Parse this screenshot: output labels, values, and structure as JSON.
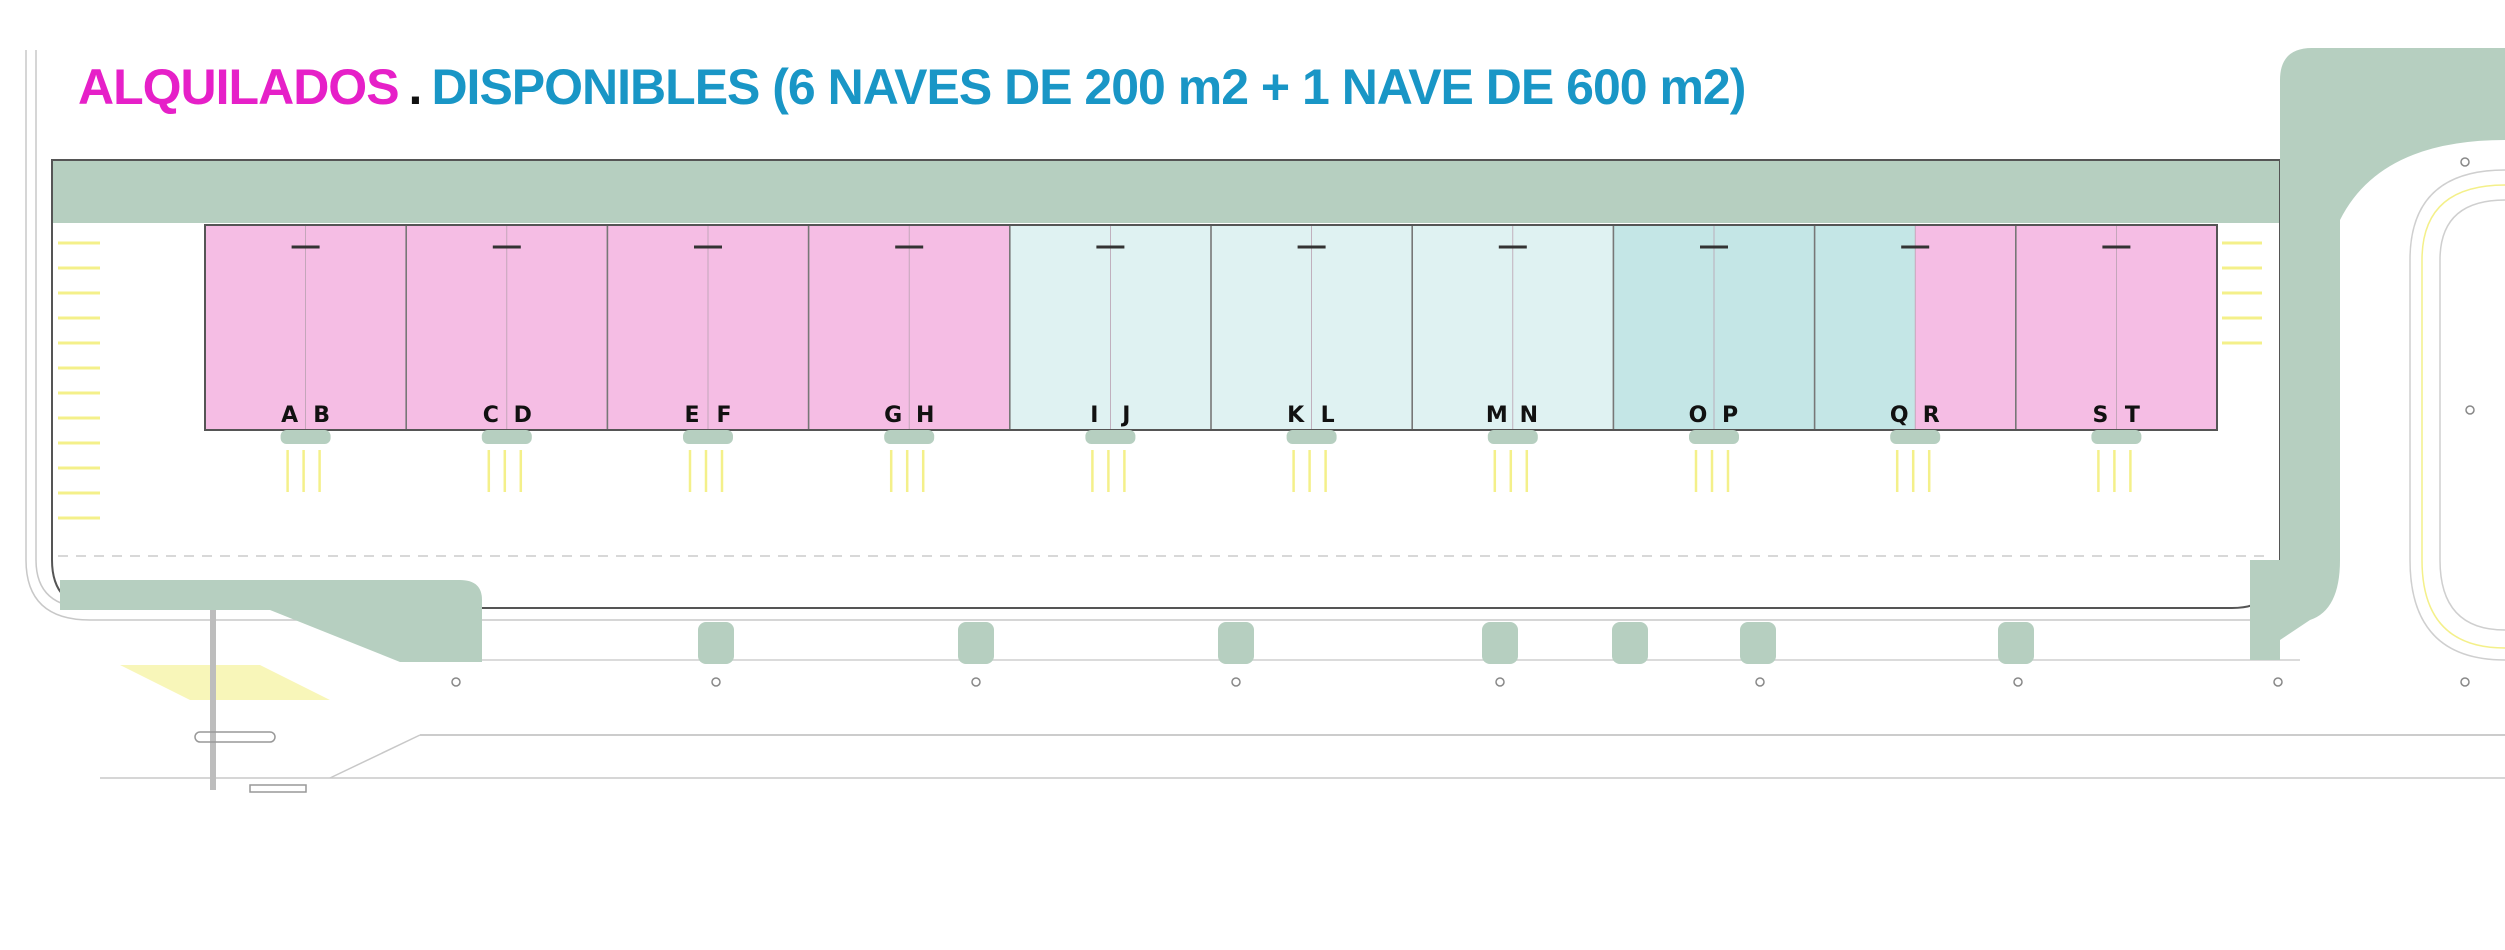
{
  "title": {
    "rented": "ALQUILADOS",
    "separator": ".",
    "available": "DISPONIBLES (6 NAVES DE 200 m2 + 1 NAVE DE 600 m2)"
  },
  "colors": {
    "rented": "#f5bde4",
    "available_light": "#dff2f2",
    "available_dark": "#c4e6e6",
    "rented_text": "#e620c8",
    "available_text": "#1996c6",
    "green_area": "#b6cfc0",
    "yellow_marking": "#f4f08a"
  },
  "units": [
    {
      "label": "A",
      "status": "rented"
    },
    {
      "label": "B",
      "status": "rented"
    },
    {
      "label": "C",
      "status": "rented"
    },
    {
      "label": "D",
      "status": "rented"
    },
    {
      "label": "E",
      "status": "rented"
    },
    {
      "label": "F",
      "status": "rented"
    },
    {
      "label": "G",
      "status": "rented"
    },
    {
      "label": "H",
      "status": "rented"
    },
    {
      "label": "I",
      "status": "available"
    },
    {
      "label": "J",
      "status": "available"
    },
    {
      "label": "K",
      "status": "available"
    },
    {
      "label": "L",
      "status": "available"
    },
    {
      "label": "M",
      "status": "available"
    },
    {
      "label": "N",
      "status": "available"
    },
    {
      "label": "O",
      "status": "available-600"
    },
    {
      "label": "P",
      "status": "available-600"
    },
    {
      "label": "Q",
      "status": "available-600"
    },
    {
      "label": "R",
      "status": "rented"
    },
    {
      "label": "S",
      "status": "rented"
    },
    {
      "label": "T",
      "status": "rented"
    }
  ]
}
